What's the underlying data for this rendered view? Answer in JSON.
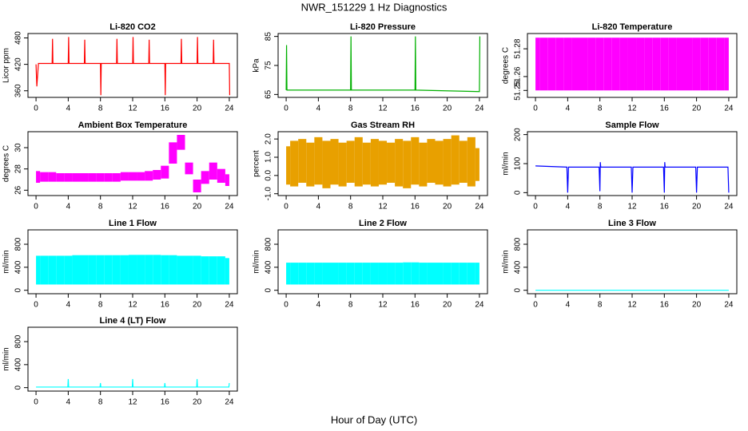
{
  "title": "NWR_151229  1 Hz Diagnostics",
  "xlabel": "Hour of Day (UTC)",
  "chart_data": [
    {
      "type": "line",
      "title": "Li-820 CO2",
      "ylabel": "Licor ppm",
      "color": "#ff0000",
      "x": [
        0,
        0.1,
        0.3,
        2,
        2.05,
        2.1,
        4,
        4.05,
        4.1,
        6,
        6.05,
        6.1,
        8,
        8.05,
        8.1,
        10,
        10.05,
        10.1,
        12,
        12.05,
        12.1,
        14,
        14.05,
        14.1,
        16,
        16.05,
        16.1,
        18,
        18.05,
        18.1,
        20,
        20.05,
        20.1,
        22,
        22.05,
        22.1,
        24,
        24.05
      ],
      "values": [
        420,
        370,
        422,
        422,
        478,
        422,
        422,
        482,
        422,
        422,
        476,
        422,
        422,
        350,
        422,
        422,
        478,
        422,
        422,
        482,
        422,
        422,
        476,
        422,
        422,
        350,
        422,
        422,
        478,
        422,
        422,
        482,
        422,
        422,
        476,
        422,
        422,
        350
      ],
      "xlim": [
        -1,
        25
      ],
      "xticks": [
        0,
        4,
        8,
        12,
        16,
        20,
        24
      ],
      "ylim": [
        345,
        490
      ],
      "yticks": [
        360,
        420,
        480
      ]
    },
    {
      "type": "line",
      "title": "Li-820 Pressure",
      "ylabel": "kPa",
      "color": "#00b000",
      "x": [
        0,
        0.05,
        0.1,
        0.3,
        8,
        8.05,
        8.1,
        16,
        16.05,
        16.1,
        24,
        24.05
      ],
      "values": [
        66.5,
        82,
        66.5,
        66.5,
        66.5,
        85,
        66.5,
        66.5,
        85,
        66.5,
        66,
        85
      ],
      "xlim": [
        -1,
        25
      ],
      "xticks": [
        0,
        4,
        8,
        12,
        16,
        20,
        24
      ],
      "ylim": [
        64,
        86
      ],
      "yticks": [
        65,
        75,
        85
      ]
    },
    {
      "type": "range",
      "title": "Li-820 Temperature",
      "ylabel": "degrees C",
      "color": "#ff00ff",
      "x": [
        0,
        1,
        2,
        3,
        4,
        5,
        6,
        7,
        8,
        9,
        10,
        11,
        12,
        13,
        14,
        15,
        16,
        17,
        18,
        19,
        20,
        21,
        22,
        23,
        24
      ],
      "low": [
        51.25,
        51.25,
        51.25,
        51.25,
        51.25,
        51.25,
        51.25,
        51.25,
        51.25,
        51.25,
        51.25,
        51.25,
        51.25,
        51.25,
        51.25,
        51.25,
        51.25,
        51.25,
        51.25,
        51.25,
        51.25,
        51.25,
        51.25,
        51.25,
        51.25
      ],
      "high": [
        51.288,
        51.288,
        51.288,
        51.288,
        51.288,
        51.288,
        51.288,
        51.288,
        51.288,
        51.288,
        51.288,
        51.288,
        51.288,
        51.288,
        51.288,
        51.288,
        51.288,
        51.288,
        51.288,
        51.288,
        51.288,
        51.288,
        51.288,
        51.288,
        51.288
      ],
      "xlim": [
        -1,
        25
      ],
      "xticks": [
        0,
        4,
        8,
        12,
        16,
        20,
        24
      ],
      "ylim": [
        51.245,
        51.291
      ],
      "yticks": [
        51.25,
        51.26,
        51.28
      ]
    },
    {
      "type": "range",
      "title": "Ambient Box Temperature",
      "ylabel": "degrees C",
      "color": "#ff00ff",
      "x": [
        0,
        1,
        2,
        3,
        4,
        5,
        6,
        7,
        8,
        9,
        10,
        11,
        12,
        13,
        14,
        15,
        16,
        17,
        18,
        19,
        20,
        21,
        22,
        23,
        24
      ],
      "low": [
        26.7,
        26.8,
        26.8,
        26.8,
        26.8,
        26.8,
        26.8,
        26.8,
        26.8,
        26.8,
        26.8,
        26.9,
        26.9,
        26.9,
        26.9,
        27.0,
        27.1,
        28.5,
        29.8,
        27.5,
        25.8,
        26.6,
        27.0,
        26.7,
        26.4
      ],
      "high": [
        27.8,
        27.7,
        27.7,
        27.6,
        27.6,
        27.6,
        27.6,
        27.6,
        27.6,
        27.6,
        27.6,
        27.7,
        27.7,
        27.7,
        27.8,
        27.9,
        28.3,
        30.5,
        31.2,
        28.6,
        27.0,
        27.8,
        28.6,
        28.0,
        27.5
      ],
      "xlim": [
        -1,
        25
      ],
      "xticks": [
        0,
        4,
        8,
        12,
        16,
        20,
        24
      ],
      "ylim": [
        25.5,
        31.5
      ],
      "yticks": [
        26,
        28,
        30
      ]
    },
    {
      "type": "range",
      "title": "Gas Stream RH",
      "ylabel": "percent",
      "color": "#e8a000",
      "x": [
        0,
        1,
        2,
        3,
        4,
        5,
        6,
        7,
        8,
        9,
        10,
        11,
        12,
        13,
        14,
        15,
        16,
        17,
        18,
        19,
        20,
        21,
        22,
        23,
        24
      ],
      "low": [
        -0.5,
        -0.6,
        -0.4,
        -0.6,
        -0.5,
        -0.7,
        -0.5,
        -0.6,
        -0.4,
        -0.6,
        -0.5,
        -0.6,
        -0.5,
        -0.4,
        -0.6,
        -0.7,
        -0.5,
        -0.6,
        -0.4,
        -0.5,
        -0.6,
        -0.5,
        -0.4,
        -0.6,
        -0.3
      ],
      "high": [
        1.6,
        1.9,
        2.0,
        1.8,
        2.1,
        1.9,
        2.0,
        1.8,
        1.9,
        2.1,
        1.8,
        2.0,
        1.9,
        1.8,
        2.0,
        1.9,
        2.1,
        1.8,
        2.0,
        1.9,
        2.0,
        2.2,
        1.9,
        2.1,
        1.5
      ],
      "xlim": [
        -1,
        25
      ],
      "xticks": [
        0,
        4,
        8,
        12,
        16,
        20,
        24
      ],
      "ylim": [
        -1.1,
        2.4
      ],
      "yticks": [
        {
          "value": -1,
          "label": "-1.0"
        },
        {
          "value": 0,
          "label": "0.0"
        },
        {
          "value": 1,
          "label": "1.0"
        },
        {
          "value": 2,
          "label": "2.0"
        }
      ]
    },
    {
      "type": "line",
      "title": "Sample Flow",
      "ylabel": "ml/min",
      "color": "#0000ff",
      "x": [
        0,
        3.9,
        4,
        4.1,
        7.9,
        8,
        8.05,
        8.1,
        11.9,
        12,
        12.1,
        15.9,
        16,
        16.05,
        16.1,
        19.9,
        20,
        20.1,
        23.9,
        24
      ],
      "values": [
        92,
        88,
        0,
        88,
        88,
        5,
        105,
        88,
        88,
        0,
        88,
        88,
        0,
        105,
        88,
        88,
        0,
        88,
        88,
        0
      ],
      "xlim": [
        -1,
        25
      ],
      "xticks": [
        0,
        4,
        8,
        12,
        16,
        20,
        24
      ],
      "ylim": [
        -10,
        210
      ],
      "yticks": [
        0,
        100,
        200
      ]
    },
    {
      "type": "range",
      "title": "Line 1 Flow",
      "ylabel": "ml/min",
      "color": "#00ffff",
      "x": [
        0,
        1,
        2,
        3,
        4,
        5,
        6,
        7,
        8,
        9,
        10,
        11,
        12,
        13,
        14,
        15,
        16,
        17,
        18,
        19,
        20,
        21,
        22,
        23,
        24
      ],
      "low": [
        100,
        100,
        100,
        100,
        100,
        100,
        100,
        100,
        100,
        100,
        100,
        100,
        100,
        100,
        100,
        100,
        100,
        100,
        100,
        100,
        100,
        100,
        100,
        100,
        100
      ],
      "high": [
        600,
        600,
        600,
        600,
        600,
        610,
        610,
        610,
        610,
        610,
        610,
        610,
        615,
        615,
        615,
        615,
        610,
        610,
        600,
        600,
        600,
        590,
        590,
        590,
        560
      ],
      "xlim": [
        -1,
        25
      ],
      "xticks": [
        0,
        4,
        8,
        12,
        16,
        20,
        24
      ],
      "ylim": [
        -60,
        1050
      ],
      "yticks": [
        0,
        400,
        800
      ]
    },
    {
      "type": "range",
      "title": "Line 2 Flow",
      "ylabel": "ml/min",
      "color": "#00ffff",
      "x": [
        0,
        1,
        2,
        3,
        4,
        5,
        6,
        7,
        8,
        9,
        10,
        11,
        12,
        13,
        14,
        15,
        16,
        17,
        18,
        19,
        20,
        21,
        22,
        23,
        24
      ],
      "low": [
        100,
        100,
        100,
        100,
        100,
        100,
        100,
        100,
        100,
        100,
        100,
        100,
        100,
        100,
        100,
        100,
        100,
        100,
        100,
        100,
        100,
        100,
        100,
        100,
        100
      ],
      "high": [
        480,
        480,
        480,
        480,
        480,
        480,
        480,
        480,
        480,
        480,
        480,
        480,
        480,
        480,
        480,
        485,
        485,
        480,
        480,
        480,
        480,
        480,
        480,
        480,
        480
      ],
      "xlim": [
        -1,
        25
      ],
      "xticks": [
        0,
        4,
        8,
        12,
        16,
        20,
        24
      ],
      "ylim": [
        -60,
        1050
      ],
      "yticks": [
        0,
        400,
        800
      ]
    },
    {
      "type": "line",
      "title": "Line 3 Flow",
      "ylabel": "ml/min",
      "color": "#00ffff",
      "x": [
        0,
        24
      ],
      "values": [
        0,
        0
      ],
      "xlim": [
        -1,
        25
      ],
      "xticks": [
        0,
        4,
        8,
        12,
        16,
        20,
        24
      ],
      "ylim": [
        -60,
        1050
      ],
      "yticks": [
        0,
        400,
        800
      ]
    },
    {
      "type": "line",
      "title": "Line 4 (LT) Flow",
      "ylabel": "ml/min",
      "color": "#00ffff",
      "x": [
        0,
        3.95,
        4,
        4.05,
        7.95,
        8,
        8.05,
        11.95,
        12,
        12.05,
        15.95,
        16,
        16.05,
        19.95,
        20,
        20.05,
        23.95,
        24
      ],
      "values": [
        10,
        10,
        150,
        10,
        10,
        80,
        10,
        10,
        150,
        10,
        10,
        80,
        10,
        10,
        150,
        10,
        10,
        80
      ],
      "xlim": [
        -1,
        25
      ],
      "xticks": [
        0,
        4,
        8,
        12,
        16,
        20,
        24
      ],
      "ylim": [
        -60,
        1050
      ],
      "yticks": [
        0,
        400,
        800
      ]
    }
  ]
}
